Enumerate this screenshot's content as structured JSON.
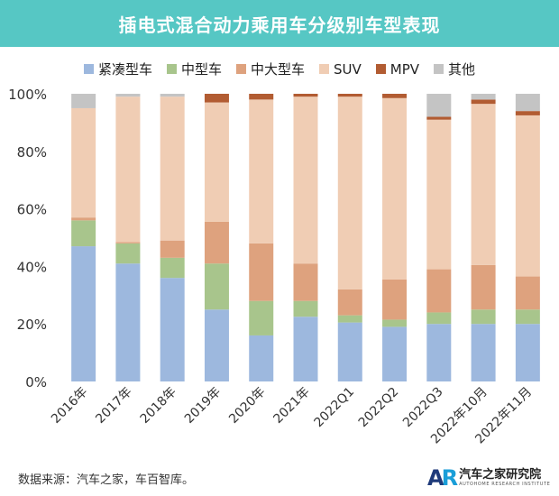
{
  "header": {
    "title": "插电式混合动力乘用车分级别车型表现"
  },
  "legend": [
    {
      "label": "紧凑型车",
      "color": "#9db8de"
    },
    {
      "label": "中型车",
      "color": "#a8c58c"
    },
    {
      "label": "中大型车",
      "color": "#dea27e"
    },
    {
      "label": "SUV",
      "color": "#f0cdb4"
    },
    {
      "label": "MPV",
      "color": "#b25c32"
    },
    {
      "label": "其他",
      "color": "#c4c4c4"
    }
  ],
  "chart_data": {
    "type": "bar",
    "stacked": true,
    "categories": [
      "2016年",
      "2017年",
      "2018年",
      "2019年",
      "2020年",
      "2021年",
      "2022Q1",
      "2022Q2",
      "2022Q3",
      "2022年10月",
      "2022年11月"
    ],
    "series": [
      {
        "name": "紧凑型车",
        "color": "#9db8de",
        "values": [
          47,
          41,
          36,
          25,
          16,
          22.5,
          20.5,
          19,
          20,
          20,
          20
        ]
      },
      {
        "name": "中型车",
        "color": "#a8c58c",
        "values": [
          9,
          7,
          7,
          16,
          12,
          5.5,
          2.5,
          2.5,
          4,
          5,
          5
        ]
      },
      {
        "name": "中大型车",
        "color": "#dea27e",
        "values": [
          1,
          0.5,
          6,
          14.5,
          20,
          13,
          9,
          14,
          15,
          15.5,
          11.5
        ]
      },
      {
        "name": "SUV",
        "color": "#f0cdb4",
        "values": [
          38,
          50.5,
          50,
          41.5,
          50,
          58,
          67,
          63,
          52,
          56,
          56
        ]
      },
      {
        "name": "MPV",
        "color": "#b25c32",
        "values": [
          0,
          0,
          0,
          3,
          2,
          1,
          1,
          1.5,
          1,
          1.5,
          1.5
        ]
      },
      {
        "name": "其他",
        "color": "#c4c4c4",
        "values": [
          5,
          1,
          1,
          0,
          0,
          0,
          0,
          0,
          8,
          2,
          6
        ]
      }
    ],
    "yticks": [
      "0%",
      "20%",
      "40%",
      "60%",
      "80%",
      "100%"
    ],
    "ylim": [
      0,
      100
    ],
    "legend_position": "top"
  },
  "footer": {
    "source": "数据来源：汽车之家，车百智库。",
    "logo_mark_a": "A",
    "logo_mark_r": "R",
    "logo_cn": "汽车之家研究院",
    "logo_en": "AUTOHOME RESEARCH INSTITUTE"
  }
}
